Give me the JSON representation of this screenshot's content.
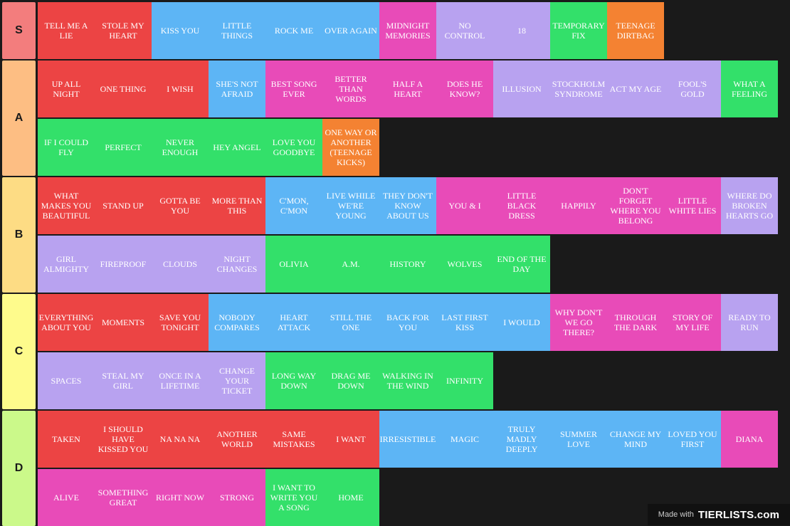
{
  "colors": {
    "red": "#ec4444",
    "blue": "#5db5f5",
    "pink": "#e84bb8",
    "lavender": "#b8a2f0",
    "green": "#33e06a",
    "orange": "#f48232",
    "label_S": "#f37d7d",
    "label_A": "#fdbe83",
    "label_B": "#fddc84",
    "label_C": "#fefb8c",
    "label_D": "#cbf98a"
  },
  "tiers": [
    {
      "label": "S",
      "color": "label_S",
      "rows": [
        [
          {
            "text": "TELL ME A LIE",
            "color": "red"
          },
          {
            "text": "STOLE MY HEART",
            "color": "red"
          },
          {
            "text": "KISS YOU",
            "color": "blue"
          },
          {
            "text": "LITTLE THINGS",
            "color": "blue"
          },
          {
            "text": "ROCK ME",
            "color": "blue"
          },
          {
            "text": "OVER AGAIN",
            "color": "blue"
          },
          {
            "text": "MIDNIGHT MEMORIES",
            "color": "pink"
          },
          {
            "text": "NO CONTROL",
            "color": "lavender"
          },
          {
            "text": "18",
            "color": "lavender"
          },
          {
            "text": "TEMPORARY FIX",
            "color": "green"
          },
          {
            "text": "TEENAGE DIRTBAG",
            "color": "orange"
          }
        ]
      ]
    },
    {
      "label": "A",
      "color": "label_A",
      "rows": [
        [
          {
            "text": "UP ALL NIGHT",
            "color": "red"
          },
          {
            "text": "ONE THING",
            "color": "red"
          },
          {
            "text": "I WISH",
            "color": "red"
          },
          {
            "text": "SHE'S NOT AFRAID",
            "color": "blue"
          },
          {
            "text": "BEST SONG EVER",
            "color": "pink"
          },
          {
            "text": "BETTER THAN WORDS",
            "color": "pink"
          },
          {
            "text": "HALF A HEART",
            "color": "pink"
          },
          {
            "text": "DOES HE KNOW?",
            "color": "pink"
          },
          {
            "text": "ILLUSION",
            "color": "lavender"
          },
          {
            "text": "STOCKHOLM SYNDROME",
            "color": "lavender"
          },
          {
            "text": "ACT MY AGE",
            "color": "lavender"
          },
          {
            "text": "FOOL'S GOLD",
            "color": "lavender"
          },
          {
            "text": "WHAT A FEELING",
            "color": "green"
          }
        ],
        [
          {
            "text": "IF I COULD FLY",
            "color": "green"
          },
          {
            "text": "PERFECT",
            "color": "green"
          },
          {
            "text": "NEVER ENOUGH",
            "color": "green"
          },
          {
            "text": "HEY ANGEL",
            "color": "green"
          },
          {
            "text": "LOVE YOU GOODBYE",
            "color": "green"
          },
          {
            "text": "ONE WAY OR ANOTHER (TEENAGE KICKS)",
            "color": "orange"
          }
        ]
      ]
    },
    {
      "label": "B",
      "color": "label_B",
      "rows": [
        [
          {
            "text": "WHAT MAKES YOU BEAUTIFUL",
            "color": "red"
          },
          {
            "text": "STAND UP",
            "color": "red"
          },
          {
            "text": "GOTTA BE YOU",
            "color": "red"
          },
          {
            "text": "MORE THAN THIS",
            "color": "red"
          },
          {
            "text": "C'MON, C'MON",
            "color": "blue"
          },
          {
            "text": "LIVE WHILE WE'RE YOUNG",
            "color": "blue"
          },
          {
            "text": "THEY DON'T KNOW ABOUT US",
            "color": "blue"
          },
          {
            "text": "YOU & I",
            "color": "pink"
          },
          {
            "text": "LITTLE BLACK DRESS",
            "color": "pink"
          },
          {
            "text": "HAPPILY",
            "color": "pink"
          },
          {
            "text": "DON'T FORGET WHERE YOU BELONG",
            "color": "pink"
          },
          {
            "text": "LITTLE WHITE LIES",
            "color": "pink"
          },
          {
            "text": "WHERE DO BROKEN HEARTS GO",
            "color": "lavender"
          }
        ],
        [
          {
            "text": "GIRL ALMIGHTY",
            "color": "lavender"
          },
          {
            "text": "FIREPROOF",
            "color": "lavender"
          },
          {
            "text": "CLOUDS",
            "color": "lavender"
          },
          {
            "text": "NIGHT CHANGES",
            "color": "lavender"
          },
          {
            "text": "OLIVIA",
            "color": "green"
          },
          {
            "text": "A.M.",
            "color": "green"
          },
          {
            "text": "HISTORY",
            "color": "green"
          },
          {
            "text": "WOLVES",
            "color": "green"
          },
          {
            "text": "END OF THE DAY",
            "color": "green"
          }
        ]
      ]
    },
    {
      "label": "C",
      "color": "label_C",
      "rows": [
        [
          {
            "text": "EVERYTHING ABOUT YOU",
            "color": "red"
          },
          {
            "text": "MOMENTS",
            "color": "red"
          },
          {
            "text": "SAVE YOU TONIGHT",
            "color": "red"
          },
          {
            "text": "NOBODY COMPARES",
            "color": "blue"
          },
          {
            "text": "HEART ATTACK",
            "color": "blue"
          },
          {
            "text": "STILL THE ONE",
            "color": "blue"
          },
          {
            "text": "BACK FOR YOU",
            "color": "blue"
          },
          {
            "text": "LAST FIRST KISS",
            "color": "blue"
          },
          {
            "text": "I WOULD",
            "color": "blue"
          },
          {
            "text": "WHY DON'T WE GO THERE?",
            "color": "pink"
          },
          {
            "text": "THROUGH THE DARK",
            "color": "pink"
          },
          {
            "text": "STORY OF MY LIFE",
            "color": "pink"
          },
          {
            "text": "READY TO RUN",
            "color": "lavender"
          }
        ],
        [
          {
            "text": "SPACES",
            "color": "lavender"
          },
          {
            "text": "STEAL MY GIRL",
            "color": "lavender"
          },
          {
            "text": "ONCE IN A LIFETIME",
            "color": "lavender"
          },
          {
            "text": "CHANGE YOUR TICKET",
            "color": "lavender"
          },
          {
            "text": "LONG WAY DOWN",
            "color": "green"
          },
          {
            "text": "DRAG ME DOWN",
            "color": "green"
          },
          {
            "text": "WALKING IN THE WIND",
            "color": "green"
          },
          {
            "text": "INFINITY",
            "color": "green"
          }
        ]
      ]
    },
    {
      "label": "D",
      "color": "label_D",
      "rows": [
        [
          {
            "text": "TAKEN",
            "color": "red"
          },
          {
            "text": "I SHOULD HAVE KISSED YOU",
            "color": "red"
          },
          {
            "text": "NA NA NA",
            "color": "red"
          },
          {
            "text": "ANOTHER WORLD",
            "color": "red"
          },
          {
            "text": "SAME MISTAKES",
            "color": "red"
          },
          {
            "text": "I WANT",
            "color": "red"
          },
          {
            "text": "IRRESISTIBLE",
            "color": "blue"
          },
          {
            "text": "MAGIC",
            "color": "blue"
          },
          {
            "text": "TRULY MADLY DEEPLY",
            "color": "blue"
          },
          {
            "text": "SUMMER LOVE",
            "color": "blue"
          },
          {
            "text": "CHANGE MY MIND",
            "color": "blue"
          },
          {
            "text": "LOVED YOU FIRST",
            "color": "blue"
          },
          {
            "text": "DIANA",
            "color": "pink"
          }
        ],
        [
          {
            "text": "ALIVE",
            "color": "pink"
          },
          {
            "text": "SOMETHING GREAT",
            "color": "pink"
          },
          {
            "text": "RIGHT NOW",
            "color": "pink"
          },
          {
            "text": "STRONG",
            "color": "pink"
          },
          {
            "text": "I WANT TO WRITE YOU A SONG",
            "color": "green"
          },
          {
            "text": "HOME",
            "color": "green"
          }
        ]
      ]
    }
  ],
  "watermark": {
    "made_with": "Made with",
    "brand": "TIERLISTS.com"
  }
}
